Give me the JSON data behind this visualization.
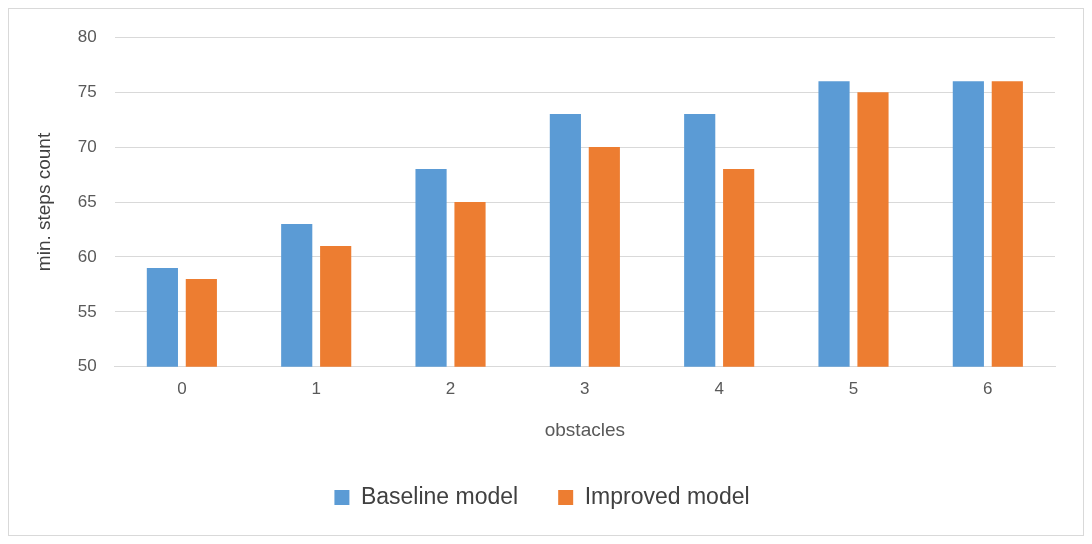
{
  "chart_data": {
    "type": "bar",
    "xlabel": "obstacles",
    "ylabel": "min. steps count",
    "categories": [
      "0",
      "1",
      "2",
      "3",
      "4",
      "5",
      "6"
    ],
    "series": [
      {
        "name": "Baseline model",
        "color": "#5b9bd5",
        "values": [
          59,
          63,
          68,
          73,
          73,
          76,
          76
        ]
      },
      {
        "name": "Improved model",
        "color": "#ed7d31",
        "values": [
          58,
          61,
          65,
          70,
          68,
          75,
          76
        ]
      }
    ],
    "ylim": [
      50,
      80
    ],
    "yticks": [
      50,
      55,
      60,
      65,
      70,
      75,
      80
    ],
    "grid": "y",
    "legend": "bottom"
  }
}
